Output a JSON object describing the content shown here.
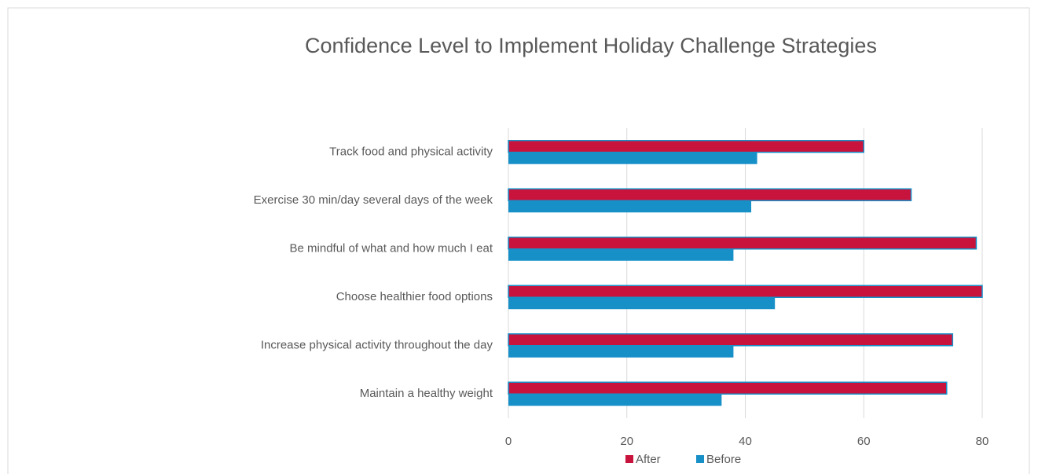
{
  "chart_data": {
    "type": "hbar",
    "title": "Confidence Level to Implement Holiday Challenge Strategies",
    "categories": [
      "Track food and physical activity",
      "Exercise 30 min/day several days of the week",
      "Be mindful of what and how much I eat",
      "Choose healthier food options",
      "Increase physical activity throughout the day",
      "Maintain a healthy weight"
    ],
    "series": [
      {
        "name": "After",
        "color": "#c8143c",
        "values": [
          60,
          68,
          79,
          80,
          75,
          74
        ]
      },
      {
        "name": "Before",
        "color": "#1790c8",
        "values": [
          42,
          41,
          38,
          45,
          38,
          36
        ]
      }
    ],
    "xlim": [
      0,
      80
    ],
    "xticks": [
      0,
      20,
      40,
      60,
      80
    ],
    "grid": true,
    "legend": "bottom"
  }
}
